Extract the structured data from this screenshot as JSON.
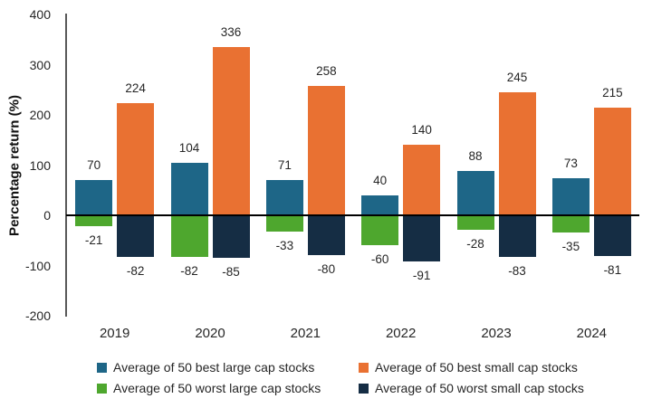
{
  "chart_data": {
    "type": "bar",
    "title": "",
    "xlabel": "",
    "ylabel": "Percentage return (%)",
    "categories": [
      "2019",
      "2020",
      "2021",
      "2022",
      "2023",
      "2024"
    ],
    "series": [
      {
        "name": "Average of 50 best large cap stocks",
        "slug": "best-large-cap",
        "color": "#1E6687",
        "values": [
          70,
          104,
          71,
          40,
          88,
          73
        ]
      },
      {
        "name": "Average of 50 best small cap stocks",
        "slug": "best-small-cap",
        "color": "#E97132",
        "values": [
          224,
          336,
          258,
          140,
          245,
          215
        ]
      },
      {
        "name": "Average of 50 worst large cap stocks",
        "slug": "worst-large-cap",
        "color": "#4EA72E",
        "values": [
          -21,
          -82,
          -33,
          -60,
          -28,
          -35
        ]
      },
      {
        "name": "Average of 50 worst small cap stocks",
        "slug": "worst-small-cap",
        "color": "#152D44",
        "values": [
          -82,
          -85,
          -80,
          -91,
          -83,
          -81
        ]
      }
    ],
    "ylim": [
      -200,
      400
    ],
    "yticks": [
      400,
      300,
      200,
      100,
      0,
      -100,
      -200
    ],
    "grid": false,
    "legend_position": "bottom",
    "data_labels": true,
    "colors": {
      "axis_line": "#595959",
      "zero_line": "#000000",
      "text": "#262626"
    }
  }
}
